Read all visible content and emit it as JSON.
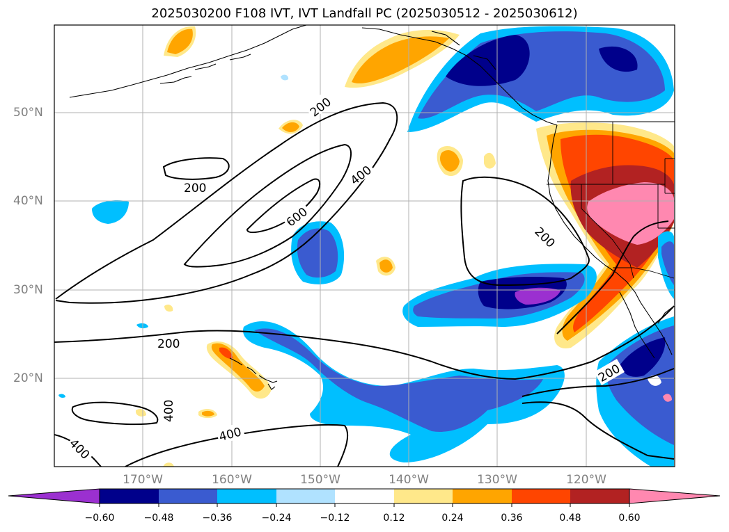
{
  "title": "2025030200 F108 IVT, IVT Landfall PC (2025030512 - 2025030612)",
  "latitude_labels": [
    "50°N",
    "40°N",
    "30°N",
    "20°N"
  ],
  "longitude_labels": [
    "170°W",
    "160°W",
    "150°W",
    "140°W",
    "130°W",
    "120°W"
  ],
  "contour_labels": [
    "200",
    "400",
    "600",
    "200",
    "200",
    "200",
    "400",
    "400",
    "400",
    "200",
    "200"
  ],
  "colorbar": {
    "tick_labels": [
      "−0.60",
      "−0.48",
      "−0.36",
      "−0.24",
      "−0.12",
      "0.12",
      "0.24",
      "0.36",
      "0.48",
      "0.60"
    ],
    "colors": [
      "#9b30d0",
      "#00008b",
      "#3a5bd0",
      "#00bfff",
      "#b0e2ff",
      "#ffffff",
      "#ffe88a",
      "#ffa500",
      "#ff4500",
      "#b22222",
      "#ff88b0"
    ]
  },
  "colors": {
    "coastline": "#000000",
    "contour": "#000000",
    "grid": "#b0b0b0",
    "axis_label": "#808080"
  }
}
